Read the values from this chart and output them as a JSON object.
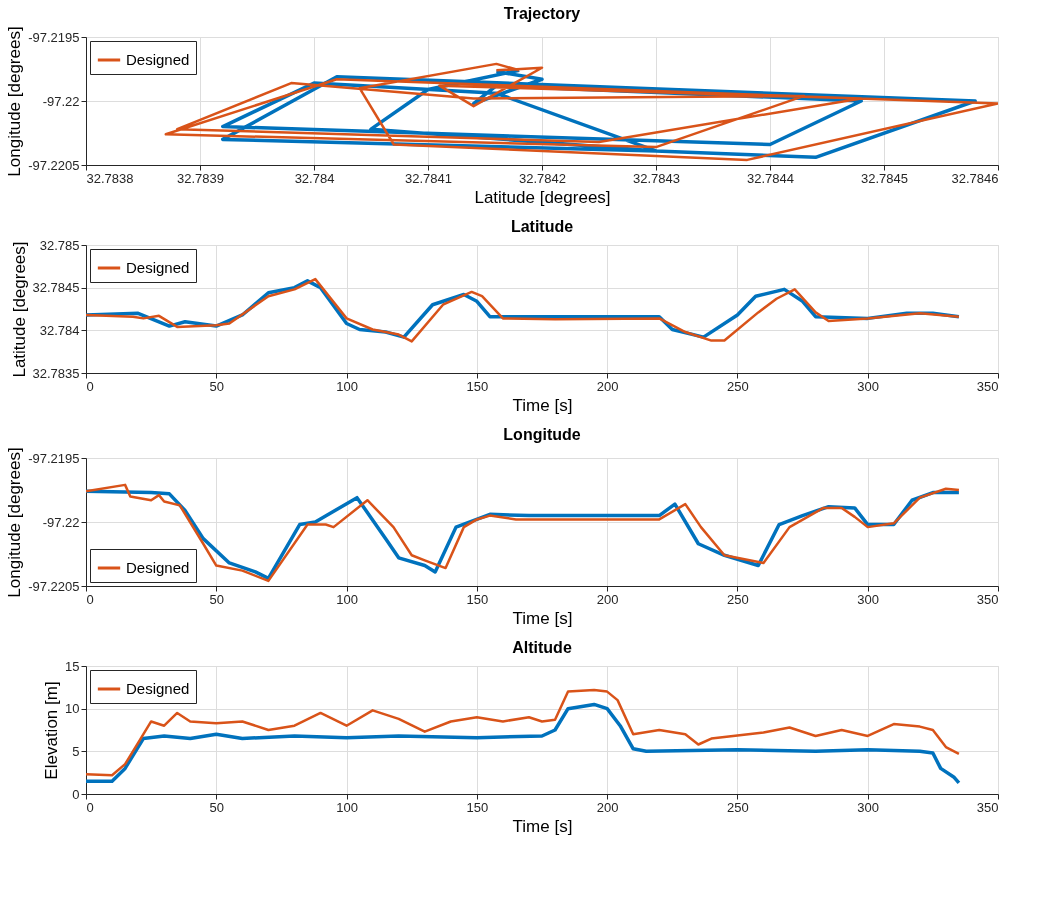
{
  "chart_data": [
    {
      "type": "line",
      "title": "Trajectory",
      "xlabel": "Latitude [degrees]",
      "ylabel": "Longitude [degrees]",
      "xlim": [
        32.7838,
        32.7846
      ],
      "xticks": [
        32.7838,
        32.7839,
        32.784,
        32.7841,
        32.7842,
        32.7843,
        32.7844,
        32.7845,
        32.7846
      ],
      "ylim": [
        -97.2205,
        -97.2195
      ],
      "yticks": [
        -97.2205,
        -97.22,
        -97.2195
      ],
      "grid": true,
      "legend": "top left",
      "series": [
        {
          "color": "#0072bd",
          "x": [
            32.78418,
            32.7841,
            32.78405,
            32.7843,
            32.78444,
            32.78458,
            32.78402,
            32.78392,
            32.7843,
            32.78416,
            32.78416,
            32.784,
            32.78392,
            32.7844,
            32.78448,
            32.78416,
            32.78414,
            32.7842,
            32.78416
          ],
          "values": [
            -97.21976,
            -97.21991,
            -97.22022,
            -97.22039,
            -97.22044,
            -97.22,
            -97.21981,
            -97.2203,
            -97.22039,
            -97.21994,
            -97.21994,
            -97.21986,
            -97.2202,
            -97.22034,
            -97.22,
            -97.21988,
            -97.22002,
            -97.21983,
            -97.21977
          ]
        },
        {
          "name": "Designed",
          "color": "#d95319",
          "x": [
            32.78418,
            32.78416,
            32.78404,
            32.78407,
            32.78438,
            32.7846,
            32.78402,
            32.78387,
            32.7843,
            32.78443,
            32.78414,
            32.78398,
            32.78388,
            32.78425,
            32.78448,
            32.78411,
            32.78414,
            32.7842,
            32.78416
          ],
          "values": [
            -97.21976,
            -97.21971,
            -97.2199,
            -97.22034,
            -97.22046,
            -97.22002,
            -97.21983,
            -97.22026,
            -97.22036,
            -97.21996,
            -97.21998,
            -97.21986,
            -97.22022,
            -97.22032,
            -97.21998,
            -97.21988,
            -97.22004,
            -97.21974,
            -97.21976
          ]
        }
      ]
    },
    {
      "type": "line",
      "title": "Latitude",
      "xlabel": "Time [s]",
      "ylabel": "Latitude [degrees]",
      "xlim": [
        0,
        350
      ],
      "xticks": [
        0,
        50,
        100,
        150,
        200,
        250,
        300,
        350
      ],
      "ylim": [
        32.7835,
        32.785
      ],
      "yticks": [
        32.7835,
        32.784,
        32.7845,
        32.785
      ],
      "grid": true,
      "legend": "top left",
      "series": [
        {
          "color": "#0072bd",
          "x": [
            0,
            20,
            32,
            38,
            50,
            60,
            70,
            80,
            85,
            90,
            100,
            105,
            115,
            122,
            133,
            145,
            150,
            155,
            200,
            220,
            225,
            237,
            250,
            257,
            268,
            275,
            280,
            300,
            315,
            325,
            335
          ],
          "values": [
            32.78418,
            32.7842,
            32.78405,
            32.7841,
            32.78405,
            32.78418,
            32.78444,
            32.7845,
            32.78458,
            32.7845,
            32.78408,
            32.78401,
            32.78398,
            32.78392,
            32.7843,
            32.78442,
            32.78434,
            32.78416,
            32.78416,
            32.78416,
            32.78401,
            32.78392,
            32.78418,
            32.7844,
            32.78448,
            32.78434,
            32.78416,
            32.78414,
            32.7842,
            32.7842,
            32.78416
          ]
        },
        {
          "name": "Designed",
          "color": "#d95319",
          "x": [
            0,
            18,
            22,
            28,
            35,
            50,
            55,
            70,
            80,
            88,
            100,
            110,
            120,
            125,
            137,
            148,
            152,
            160,
            180,
            220,
            230,
            240,
            245,
            258,
            265,
            272,
            280,
            285,
            300,
            320,
            335
          ],
          "values": [
            32.78418,
            32.78416,
            32.78414,
            32.78417,
            32.78404,
            32.78406,
            32.78408,
            32.7844,
            32.78448,
            32.7846,
            32.78414,
            32.78401,
            32.78395,
            32.78387,
            32.7843,
            32.78445,
            32.7844,
            32.78414,
            32.78413,
            32.78414,
            32.78398,
            32.78388,
            32.78388,
            32.78421,
            32.78437,
            32.78448,
            32.78421,
            32.78411,
            32.78414,
            32.7842,
            32.78416
          ]
        }
      ]
    },
    {
      "type": "line",
      "title": "Longitude",
      "xlabel": "Time [s]",
      "ylabel": "Longitude [degrees]",
      "xlim": [
        0,
        350
      ],
      "xticks": [
        0,
        50,
        100,
        150,
        200,
        250,
        300,
        350
      ],
      "ylim": [
        -97.2205,
        -97.2195
      ],
      "yticks": [
        -97.2205,
        -97.22,
        -97.2195
      ],
      "grid": true,
      "legend": "bottom left",
      "series": [
        {
          "color": "#0072bd",
          "x": [
            0,
            25,
            32,
            38,
            45,
            55,
            65,
            70,
            82,
            88,
            104,
            115,
            120,
            130,
            134,
            142,
            155,
            170,
            220,
            226,
            235,
            245,
            258,
            266,
            275,
            285,
            295,
            300,
            310,
            317,
            325,
            335
          ],
          "values": [
            -97.21976,
            -97.21977,
            -97.21978,
            -97.21991,
            -97.22013,
            -97.22032,
            -97.22039,
            -97.22044,
            -97.22002,
            -97.22,
            -97.21981,
            -97.22013,
            -97.22028,
            -97.22034,
            -97.22039,
            -97.22004,
            -97.21994,
            -97.21995,
            -97.21995,
            -97.21986,
            -97.22017,
            -97.22026,
            -97.22034,
            -97.22002,
            -97.21995,
            -97.21988,
            -97.21989,
            -97.22002,
            -97.22002,
            -97.21983,
            -97.21977,
            -97.21977
          ]
        },
        {
          "name": "Designed",
          "color": "#d95319",
          "x": [
            0,
            15,
            17,
            25,
            28,
            30,
            36,
            45,
            50,
            60,
            70,
            85,
            92,
            95,
            108,
            118,
            125,
            130,
            138,
            145,
            150,
            155,
            165,
            220,
            230,
            236,
            245,
            260,
            270,
            283,
            290,
            295,
            300,
            310,
            320,
            330,
            335
          ],
          "values": [
            -97.21976,
            -97.21971,
            -97.2198,
            -97.21983,
            -97.21979,
            -97.21984,
            -97.21987,
            -97.22017,
            -97.22034,
            -97.22038,
            -97.22046,
            -97.22002,
            -97.22002,
            -97.22004,
            -97.21983,
            -97.22004,
            -97.22026,
            -97.2203,
            -97.22036,
            -97.22004,
            -97.21998,
            -97.21995,
            -97.21998,
            -97.21998,
            -97.21986,
            -97.22004,
            -97.22026,
            -97.22032,
            -97.22004,
            -97.21989,
            -97.21989,
            -97.21996,
            -97.22004,
            -97.22001,
            -97.21981,
            -97.21974,
            -97.21975
          ]
        }
      ]
    },
    {
      "type": "line",
      "title": "Altitude",
      "xlabel": "Time [s]",
      "ylabel": "Elevation [m]",
      "xlim": [
        0,
        350
      ],
      "xticks": [
        0,
        50,
        100,
        150,
        200,
        250,
        300,
        350
      ],
      "ylim": [
        0,
        15
      ],
      "yticks": [
        0,
        5,
        10,
        15
      ],
      "grid": true,
      "legend": "top left",
      "series": [
        {
          "color": "#0072bd",
          "x": [
            0,
            10,
            15,
            20,
            22,
            30,
            40,
            50,
            60,
            80,
            100,
            120,
            150,
            175,
            180,
            185,
            195,
            200,
            205,
            210,
            215,
            250,
            280,
            300,
            320,
            325,
            328,
            333,
            335
          ],
          "values": [
            1.5,
            1.5,
            3,
            5.5,
            6.5,
            6.8,
            6.5,
            7.0,
            6.5,
            6.8,
            6.6,
            6.8,
            6.6,
            6.8,
            7.5,
            10,
            10.5,
            10,
            8,
            5.3,
            5,
            5.2,
            5.0,
            5.2,
            5,
            4.8,
            3,
            2,
            1.3
          ]
        },
        {
          "name": "Designed",
          "color": "#d95319",
          "x": [
            0,
            10,
            15,
            20,
            25,
            30,
            35,
            40,
            50,
            60,
            70,
            80,
            90,
            100,
            110,
            120,
            130,
            140,
            150,
            160,
            170,
            175,
            180,
            185,
            195,
            200,
            204,
            210,
            220,
            230,
            235,
            240,
            260,
            270,
            280,
            290,
            300,
            310,
            320,
            325,
            330,
            335
          ],
          "values": [
            2.3,
            2.2,
            3.5,
            6,
            8.5,
            8,
            9.5,
            8.5,
            8.3,
            8.5,
            7.5,
            8,
            9.5,
            8.0,
            9.8,
            8.8,
            7.3,
            8.5,
            9,
            8.5,
            9,
            8.5,
            8.7,
            12,
            12.2,
            12,
            11,
            7,
            7.5,
            7,
            5.8,
            6.5,
            7.2,
            7.8,
            6.8,
            7.5,
            6.8,
            8.2,
            7.9,
            7.5,
            5.5,
            4.7
          ]
        }
      ]
    }
  ]
}
